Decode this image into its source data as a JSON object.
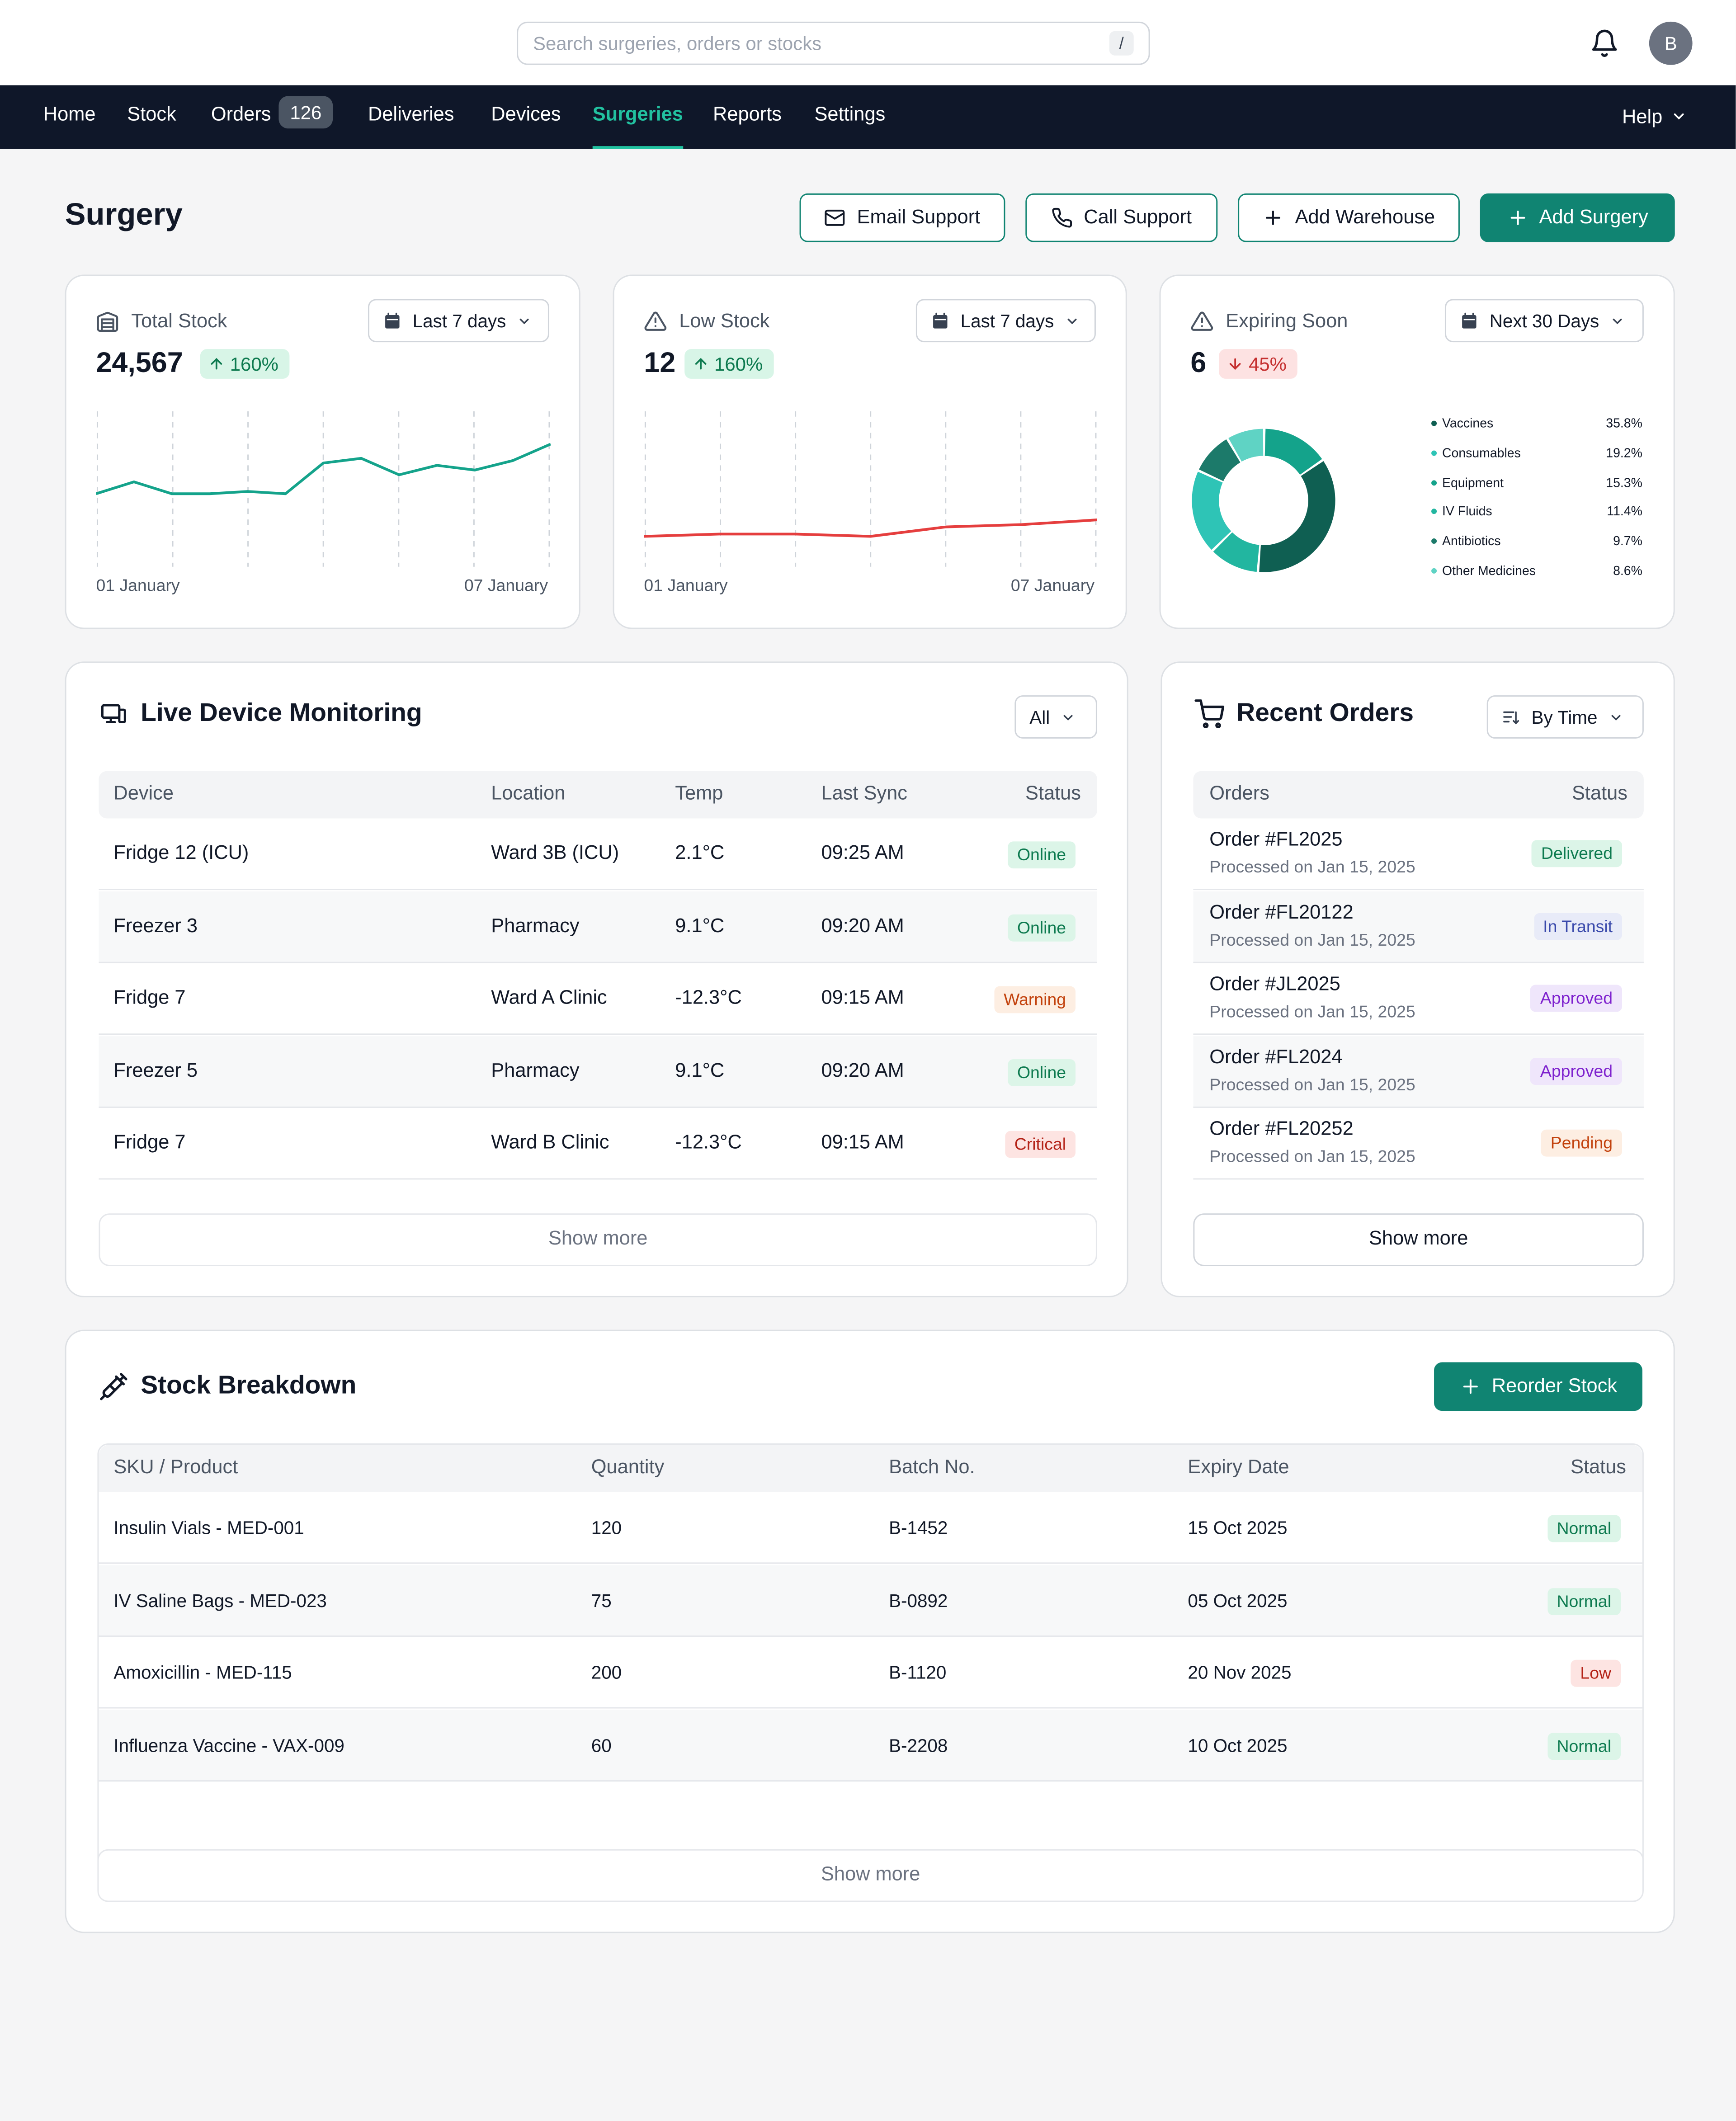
{
  "search": {
    "placeholder": "Search surgeries, orders or stocks",
    "shortcut": "/"
  },
  "user": {
    "initial": "B"
  },
  "nav": {
    "items": [
      {
        "label": "Home"
      },
      {
        "label": "Stock"
      },
      {
        "label": "Orders",
        "badge": "126"
      },
      {
        "label": "Deliveries"
      },
      {
        "label": "Devices"
      },
      {
        "label": "Surgeries",
        "active": true
      },
      {
        "label": "Reports"
      },
      {
        "label": "Settings"
      }
    ],
    "help_label": "Help"
  },
  "header": {
    "title": "Surgery",
    "buttons": {
      "email_support": "Email Support",
      "call_support": "Call Support",
      "add_warehouse": "Add Warehouse",
      "add_surgery": "Add Surgery"
    }
  },
  "stats": {
    "total_stock": {
      "label": "Total Stock",
      "value": "24,567",
      "change": "160%",
      "range": "Last 7 days",
      "x_start": "01 January",
      "x_end": "07 January",
      "color": "#14a38b",
      "series": [
        58,
        63,
        58,
        58,
        59,
        58,
        71,
        73,
        66,
        70,
        68,
        72,
        79
      ]
    },
    "low_stock": {
      "label": "Low Stock",
      "value": "12",
      "change": "160%",
      "range": "Last 7 days",
      "x_start": "01 January",
      "x_end": "07 January",
      "color": "#e53e3e",
      "series": [
        40,
        41,
        41,
        40,
        44,
        45,
        47
      ]
    },
    "expiring_soon": {
      "label": "Expiring Soon",
      "value": "6",
      "change": "45%",
      "range": "Next 30 Days",
      "breakdown": [
        {
          "name": "Vaccines",
          "pct": "35.8%",
          "value": 35.8,
          "color": "#0f5f52"
        },
        {
          "name": "Consumables",
          "pct": "19.2%",
          "value": 19.2,
          "color": "#2ec4b6"
        },
        {
          "name": "Equipment",
          "pct": "15.3%",
          "value": 15.3,
          "color": "#14a38b"
        },
        {
          "name": "IV Fluids",
          "pct": "11.4%",
          "value": 11.4,
          "color": "#22b6a0"
        },
        {
          "name": "Antibiotics",
          "pct": "9.7%",
          "value": 9.7,
          "color": "#1c7a6a"
        },
        {
          "name": "Other Medicines",
          "pct": "8.6%",
          "value": 8.6,
          "color": "#5fd3c4"
        }
      ]
    }
  },
  "devices": {
    "title": "Live Device Monitoring",
    "filter": "All",
    "columns": [
      "Device",
      "Location",
      "Temp",
      "Last Sync",
      "Status"
    ],
    "rows": [
      {
        "device": "Fridge 12 (ICU)",
        "location": "Ward 3B (ICU)",
        "temp": "2.1°C",
        "sync": "09:25 AM",
        "status": "Online",
        "kind": "online"
      },
      {
        "device": "Freezer 3",
        "location": "Pharmacy",
        "temp": "9.1°C",
        "sync": "09:20 AM",
        "status": "Online",
        "kind": "online"
      },
      {
        "device": "Fridge 7",
        "location": "Ward A Clinic",
        "temp": "-12.3°C",
        "sync": "09:15 AM",
        "status": "Warning",
        "kind": "warning"
      },
      {
        "device": "Freezer 5",
        "location": "Pharmacy",
        "temp": "9.1°C",
        "sync": "09:20 AM",
        "status": "Online",
        "kind": "online"
      },
      {
        "device": "Fridge 7",
        "location": "Ward B Clinic",
        "temp": "-12.3°C",
        "sync": "09:15 AM",
        "status": "Critical",
        "kind": "critical"
      }
    ],
    "show_more": "Show more"
  },
  "orders": {
    "title": "Recent Orders",
    "sort": "By Time",
    "columns": [
      "Orders",
      "Status"
    ],
    "rows": [
      {
        "id": "Order #FL2025",
        "date": "Processed on Jan 15, 2025",
        "status": "Delivered",
        "kind": "delivered"
      },
      {
        "id": "Order #FL20122",
        "date": "Processed on Jan 15, 2025",
        "status": "In Transit",
        "kind": "transit"
      },
      {
        "id": "Order #JL2025",
        "date": "Processed on Jan 15, 2025",
        "status": "Approved",
        "kind": "approved"
      },
      {
        "id": "Order #FL2024",
        "date": "Processed on Jan 15, 2025",
        "status": "Approved",
        "kind": "approved"
      },
      {
        "id": "Order #FL20252",
        "date": "Processed on Jan 15, 2025",
        "status": "Pending",
        "kind": "pending"
      }
    ],
    "show_more": "Show more"
  },
  "stock": {
    "title": "Stock Breakdown",
    "reorder_label": "Reorder Stock",
    "columns": [
      "SKU / Product",
      "Quantity",
      "Batch No.",
      "Expiry Date",
      "Status"
    ],
    "rows": [
      {
        "product": "Insulin Vials - MED-001",
        "qty": "120",
        "batch": "B-1452",
        "expiry": "15 Oct 2025",
        "status": "Normal",
        "kind": "normal"
      },
      {
        "product": "IV Saline Bags - MED-023",
        "qty": "75",
        "batch": "B-0892",
        "expiry": "05 Oct 2025",
        "status": "Normal",
        "kind": "normal"
      },
      {
        "product": "Amoxicillin  - MED-115",
        "qty": "200",
        "batch": "B-1120",
        "expiry": "20 Nov 2025",
        "status": "Low",
        "kind": "low"
      },
      {
        "product": "Influenza Vaccine - VAX-009",
        "qty": "60",
        "batch": "B-2208",
        "expiry": "10 Oct 2025",
        "status": "Normal",
        "kind": "normal"
      }
    ],
    "show_more": "Show more"
  }
}
